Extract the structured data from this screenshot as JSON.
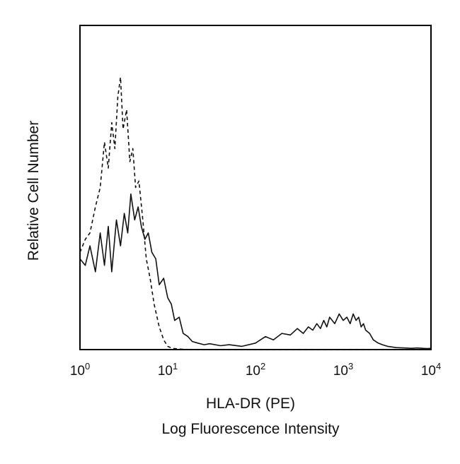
{
  "chart_data": {
    "type": "line",
    "xlabel_lines": [
      "HLA-DR (PE)",
      "Log Fluorescence Intensity"
    ],
    "ylabel": "Relative Cell Number",
    "xscale": "log",
    "xlim": [
      1,
      10000
    ],
    "ylim": [
      0,
      1
    ],
    "grid": false,
    "legend": "none",
    "x_ticks": [
      {
        "value": 1,
        "base": "10",
        "exp": "0"
      },
      {
        "value": 10,
        "base": "10",
        "exp": "1"
      },
      {
        "value": 100,
        "base": "10",
        "exp": "2"
      },
      {
        "value": 1000,
        "base": "10",
        "exp": "3"
      },
      {
        "value": 10000,
        "base": "10",
        "exp": "4"
      }
    ],
    "series": [
      {
        "style": "solid",
        "color": "#111111",
        "x": [
          1.0,
          1.15,
          1.3,
          1.5,
          1.7,
          1.9,
          2.1,
          2.3,
          2.6,
          2.9,
          3.2,
          3.5,
          3.8,
          4.2,
          4.6,
          5.0,
          5.5,
          6.0,
          6.6,
          7.3,
          8.0,
          9.0,
          10,
          11,
          12,
          13.5,
          15,
          17,
          19,
          22,
          26,
          30,
          40,
          50,
          70,
          100,
          130,
          160,
          200,
          250,
          300,
          350,
          400,
          450,
          500,
          550,
          600,
          650,
          700,
          800,
          900,
          1000,
          1100,
          1200,
          1300,
          1400,
          1500,
          1600,
          1700,
          1800,
          2000,
          2200,
          2500,
          2800,
          3200,
          3600,
          4000,
          5000,
          6000,
          7000,
          8000,
          9000,
          10000
        ],
        "y": [
          0.28,
          0.26,
          0.32,
          0.24,
          0.36,
          0.26,
          0.38,
          0.24,
          0.4,
          0.32,
          0.42,
          0.36,
          0.48,
          0.4,
          0.44,
          0.38,
          0.34,
          0.36,
          0.3,
          0.28,
          0.2,
          0.22,
          0.16,
          0.14,
          0.09,
          0.1,
          0.05,
          0.04,
          0.025,
          0.02,
          0.015,
          0.018,
          0.012,
          0.015,
          0.01,
          0.02,
          0.04,
          0.03,
          0.05,
          0.045,
          0.065,
          0.05,
          0.07,
          0.06,
          0.08,
          0.065,
          0.09,
          0.07,
          0.1,
          0.08,
          0.11,
          0.09,
          0.1,
          0.08,
          0.11,
          0.09,
          0.1,
          0.07,
          0.08,
          0.06,
          0.05,
          0.03,
          0.02,
          0.015,
          0.01,
          0.008,
          0.006,
          0.005,
          0.004,
          0.005,
          0.004,
          0.003,
          0.004
        ]
      },
      {
        "style": "dashed",
        "color": "#111111",
        "x": [
          1.0,
          1.15,
          1.3,
          1.5,
          1.7,
          1.9,
          2.1,
          2.3,
          2.5,
          2.7,
          2.9,
          3.1,
          3.4,
          3.7,
          4.0,
          4.3,
          4.7,
          5.2,
          5.7,
          6.3,
          7.0,
          8.0,
          9.0,
          10,
          11,
          12,
          13,
          15,
          20,
          30,
          50,
          100,
          300,
          1000,
          3000,
          10000
        ],
        "y": [
          0.3,
          0.34,
          0.36,
          0.44,
          0.5,
          0.64,
          0.56,
          0.7,
          0.62,
          0.78,
          0.84,
          0.68,
          0.74,
          0.58,
          0.62,
          0.5,
          0.52,
          0.4,
          0.28,
          0.22,
          0.14,
          0.07,
          0.03,
          0.01,
          0.005,
          0.003,
          0.002,
          0.001,
          0.0,
          0.0,
          0.0,
          0.0,
          0.0,
          0.0,
          0.0,
          0.0
        ]
      }
    ]
  }
}
